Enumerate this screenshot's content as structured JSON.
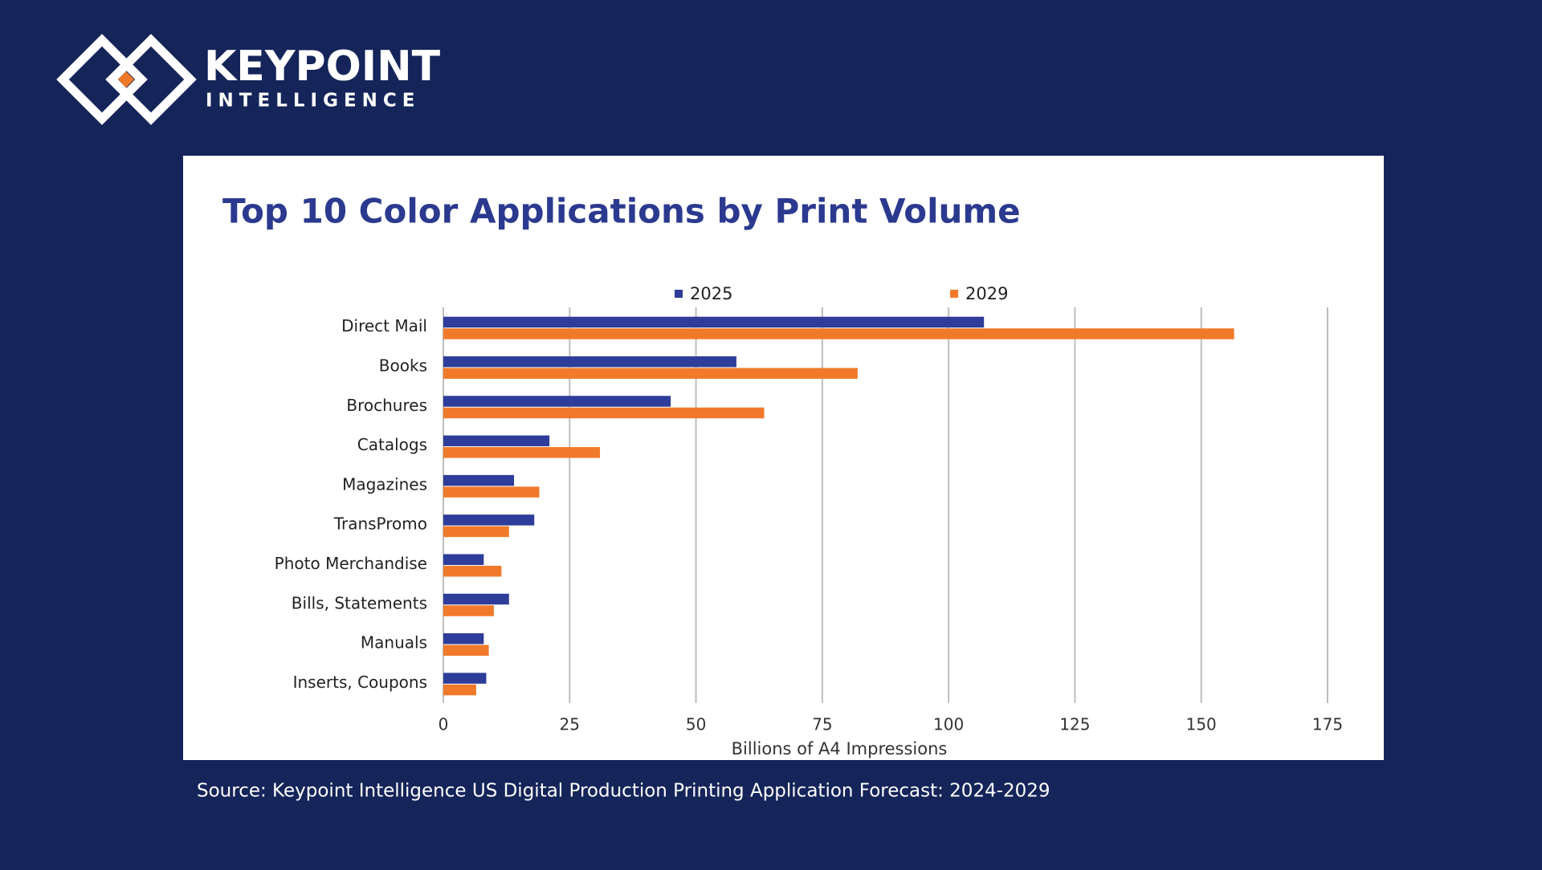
{
  "header": {
    "logo_top": "KEYPOINT",
    "logo_bottom": "INTELLIGENCE"
  },
  "chart_data": {
    "type": "bar",
    "orientation": "horizontal",
    "title": "Top 10 Color Applications by Print Volume",
    "categories": [
      "Direct Mail",
      "Books",
      "Brochures",
      "Catalogs",
      "Magazines",
      "TransPromo",
      "Photo Merchandise",
      "Bills, Statements",
      "Manuals",
      "Inserts, Coupons"
    ],
    "series": [
      {
        "name": "2025",
        "color": "#2e3d99",
        "values": [
          107,
          58,
          45,
          21,
          14,
          18,
          8,
          13,
          8,
          8.5
        ]
      },
      {
        "name": "2029",
        "color": "#f07a2a",
        "values": [
          156.5,
          82,
          63.5,
          31,
          19,
          13,
          11.5,
          10,
          9,
          6.5
        ]
      }
    ],
    "xlim": [
      0,
      175
    ],
    "xticks": [
      0,
      25,
      50,
      75,
      100,
      125,
      150,
      175
    ],
    "x_label": "Billions of A4 Impressions",
    "grid": true
  },
  "footer": {
    "source": "Source: Keypoint Intelligence US Digital Production Printing Application Forecast: 2024-2029"
  }
}
